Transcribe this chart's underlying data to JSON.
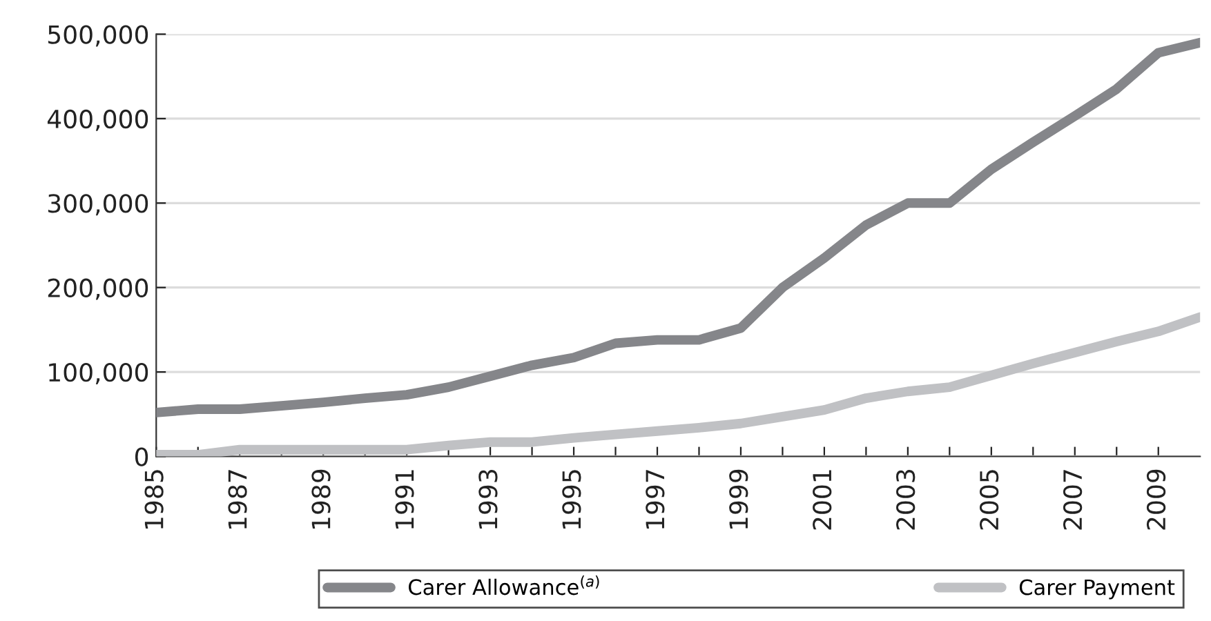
{
  "chart_data": {
    "type": "line",
    "x": [
      1985,
      1986,
      1987,
      1988,
      1989,
      1990,
      1991,
      1992,
      1993,
      1994,
      1995,
      1996,
      1997,
      1998,
      1999,
      2000,
      2001,
      2002,
      2003,
      2004,
      2005,
      2006,
      2007,
      2008,
      2009,
      2010
    ],
    "series": [
      {
        "name": "Carer Allowance$^{(a)}$",
        "color": "#85868a",
        "values": [
          52000,
          56000,
          56000,
          60000,
          64000,
          69000,
          73000,
          82000,
          95000,
          108000,
          117000,
          134000,
          138000,
          138000,
          152000,
          200000,
          235000,
          274000,
          300000,
          300000,
          340000,
          372000,
          403000,
          435000,
          478000,
          490000
        ]
      },
      {
        "name": "Carer Payment",
        "color": "#c0c1c4",
        "values": [
          2000,
          2000,
          8000,
          8000,
          8000,
          8000,
          8000,
          13000,
          17000,
          17000,
          22000,
          26000,
          30000,
          34000,
          39000,
          47000,
          55000,
          69000,
          77000,
          82000,
          96000,
          110000,
          123000,
          136000,
          148000,
          165000
        ]
      }
    ],
    "xlim": [
      1985,
      2010
    ],
    "xticks": [
      1985,
      {
        "value": 1986,
        "label": null
      },
      1987,
      {
        "value": 1988,
        "label": null
      },
      1989,
      {
        "value": 1990,
        "label": null
      },
      1991,
      {
        "value": 1992,
        "label": null
      },
      1993,
      {
        "value": 1994,
        "label": null
      },
      1995,
      {
        "value": 1996,
        "label": null
      },
      1997,
      {
        "value": 1998,
        "label": null
      },
      1999,
      {
        "value": 2000,
        "label": null
      },
      2001,
      {
        "value": 2002,
        "label": null
      },
      2003,
      {
        "value": 2004,
        "label": null
      },
      2005,
      {
        "value": 2006,
        "label": null
      },
      2007,
      {
        "value": 2008,
        "label": null
      },
      2009
    ],
    "ylim": [
      0,
      500000
    ],
    "yticks": [
      {
        "value": 0,
        "label": "0"
      },
      {
        "value": 100000,
        "label": "100,000"
      },
      {
        "value": 200000,
        "label": "200,000"
      },
      {
        "value": 300000,
        "label": "300,000"
      },
      {
        "value": 400000,
        "label": "400,000"
      },
      {
        "value": 500000,
        "label": "500,000"
      }
    ],
    "grid": "y",
    "legend": "bottom",
    "marker": "none",
    "line_style": "solid"
  }
}
